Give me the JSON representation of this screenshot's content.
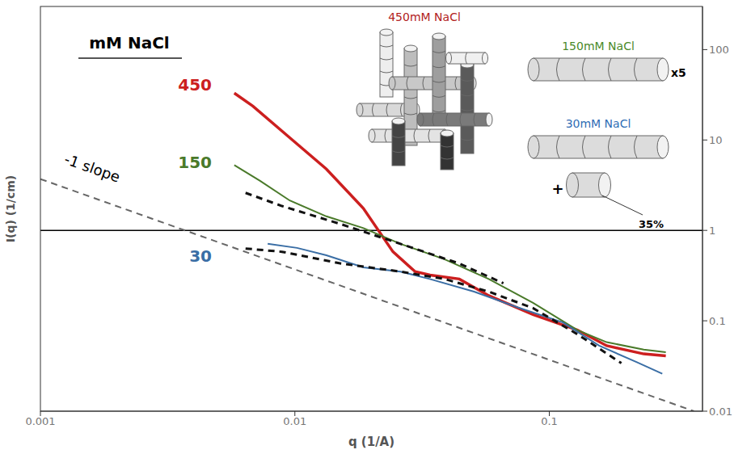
{
  "chart_data": {
    "type": "line",
    "x_label": "q (1/A)",
    "y_label": "I(q) (1/cm)",
    "log": true,
    "grid": false,
    "xlim": [
      0.001,
      0.4
    ],
    "xticks": [
      0.001,
      0.01,
      0.1
    ],
    "ylim": [
      0.01,
      300
    ],
    "yticks": [
      0.01,
      0.1,
      1,
      10,
      100
    ],
    "reference_lines": [
      {
        "y": 1,
        "color": "#000000"
      }
    ],
    "series": [
      {
        "name": "450",
        "color": "#cc1f1f",
        "line_style": "solid",
        "x": [
          0.00578,
          0.00684,
          0.00955,
          0.0133,
          0.0186,
          0.0243,
          0.0297,
          0.034,
          0.0443,
          0.0578,
          0.0863,
          0.129,
          0.168,
          0.235,
          0.287
        ],
        "values": [
          33,
          23.7,
          10.6,
          4.77,
          1.75,
          0.58,
          0.35,
          0.32,
          0.29,
          0.19,
          0.117,
          0.079,
          0.053,
          0.043,
          0.041
        ]
      },
      {
        "name": "150",
        "color": "#4a7a2a",
        "line_style": "solid",
        "x": [
          0.00578,
          0.0073,
          0.00955,
          0.0133,
          0.0186,
          0.026,
          0.0387,
          0.0578,
          0.0863,
          0.129,
          0.168,
          0.235,
          0.287
        ],
        "values": [
          5.27,
          3.53,
          2.14,
          1.43,
          1.06,
          0.71,
          0.48,
          0.29,
          0.158,
          0.079,
          0.058,
          0.048,
          0.045
        ]
      },
      {
        "name": "30",
        "color": "#3a6ea5",
        "line_style": "solid",
        "x": [
          0.00782,
          0.0102,
          0.0133,
          0.0186,
          0.026,
          0.0339,
          0.0506,
          0.0755,
          0.113,
          0.157,
          0.22,
          0.278
        ],
        "values": [
          0.71,
          0.64,
          0.53,
          0.39,
          0.35,
          0.29,
          0.21,
          0.14,
          0.096,
          0.053,
          0.035,
          0.026
        ]
      },
      {
        "color": "#111111",
        "line_style": "dashed",
        "x": [
          0.0064,
          0.0089,
          0.0152,
          0.026,
          0.0443,
          0.066
        ],
        "values": [
          2.6,
          1.86,
          1.17,
          0.71,
          0.43,
          0.26
        ]
      },
      {
        "color": "#111111",
        "line_style": "dashed",
        "x": [
          0.0064,
          0.0089,
          0.0152,
          0.026,
          0.0387,
          0.0578,
          0.0863,
          0.129,
          0.192
        ],
        "values": [
          0.63,
          0.58,
          0.43,
          0.35,
          0.29,
          0.21,
          0.138,
          0.071,
          0.034
        ]
      },
      {
        "name": "-1 slope",
        "color": "#666666",
        "line_style": "dashed",
        "x": [
          0.001,
          0.37
        ],
        "values": [
          3.7,
          0.01
        ]
      }
    ],
    "annotations": [
      {
        "text": "mM NaCl",
        "color": "#000000"
      },
      {
        "text": "450mM NaCl",
        "color": "#b22222"
      },
      {
        "text": "150mM NaCl",
        "color": "#4a8a2a"
      },
      {
        "text": "30mM NaCl",
        "color": "#2f6db5"
      },
      {
        "text": "x5",
        "color": "#000000"
      },
      {
        "text": "+",
        "color": "#000000"
      },
      {
        "text": "35%",
        "color": "#000000"
      }
    ]
  }
}
